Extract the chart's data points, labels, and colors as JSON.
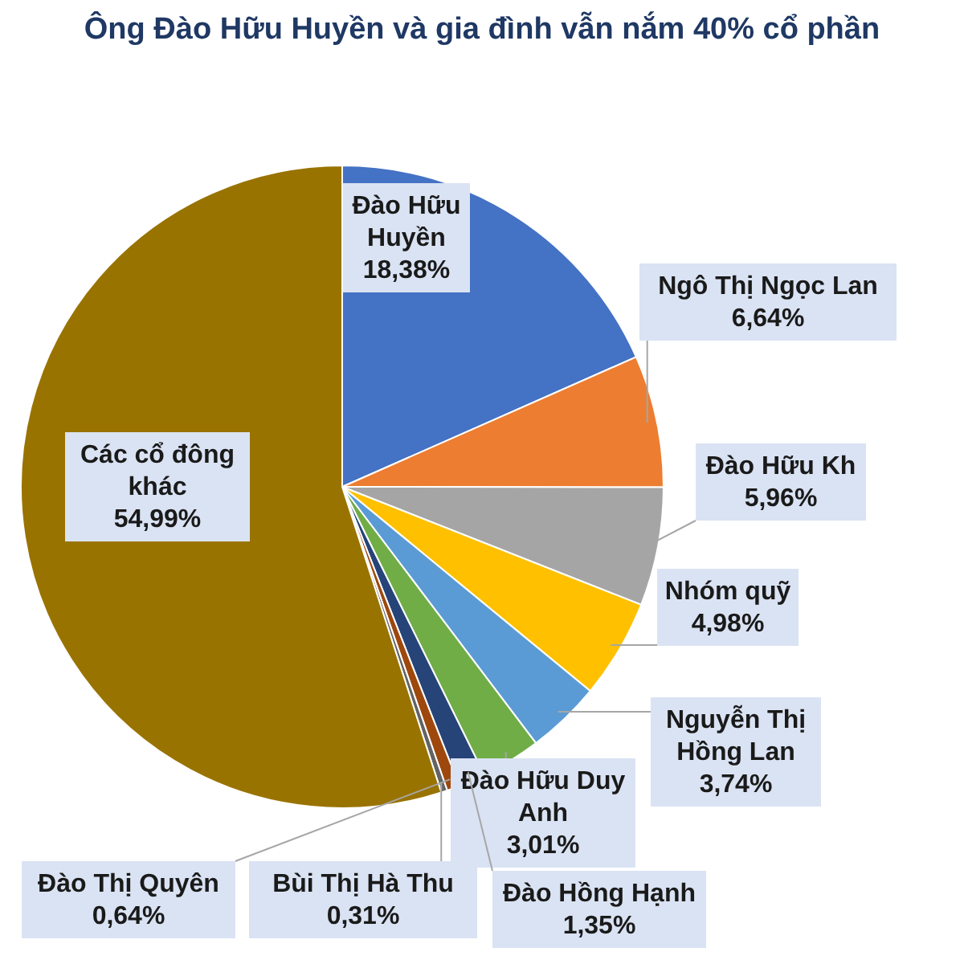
{
  "chart_data": {
    "type": "pie",
    "title": "Ông Đào Hữu Huyền và gia đình vẫn nắm 40% cổ phần",
    "categories": [
      "Đào Hữu Huyền",
      "Ngô Thị Ngọc Lan",
      "Đào Hữu Kh",
      "Nhóm quỹ",
      "Nguyễn Thị Hồng Lan",
      "Đào Hữu Duy Anh",
      "Đào Hồng Hạnh",
      "Đào Thị Quyên",
      "Bùi Thị Hà Thu",
      "Các cổ đông khác"
    ],
    "values": [
      18.38,
      6.64,
      5.96,
      4.98,
      3.74,
      3.01,
      1.35,
      0.64,
      0.31,
      54.99
    ],
    "value_labels": [
      "18,38%",
      "6,64%",
      "5,96%",
      "4,98%",
      "3,74%",
      "3,01%",
      "1,35%",
      "0,64%",
      "0,31%",
      "54,99%"
    ],
    "colors": [
      "#4472c4",
      "#ed7d31",
      "#a5a5a5",
      "#ffc000",
      "#5b9bd5",
      "#70ad47",
      "#264478",
      "#9e480e",
      "#636363",
      "#997300"
    ],
    "legend": false
  }
}
